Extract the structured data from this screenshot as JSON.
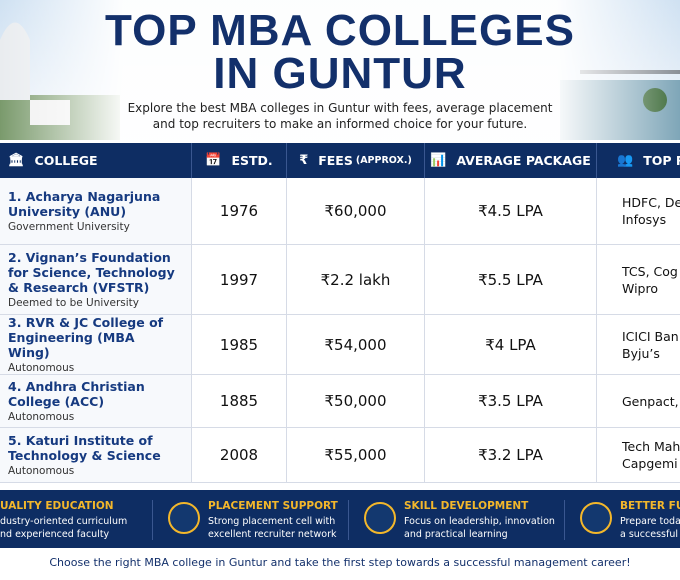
{
  "header": {
    "title_lines": [
      "TOP MBA COLLEGES",
      "IN GUNTUR"
    ],
    "subtitle_lines": [
      "Explore the best MBA colleges in Guntur with fees, average placement",
      "and top recruiters to make an informed choice for your future."
    ]
  },
  "table": {
    "columns": [
      {
        "label": "COLLEGE"
      },
      {
        "label": "ESTD."
      },
      {
        "label": "FEES",
        "note": "(APPROX.)"
      },
      {
        "label": "AVERAGE PACKAGE"
      },
      {
        "label": "TOP RE"
      }
    ],
    "rows": [
      {
        "name": "1. Acharya Nagarjuna University (ANU)",
        "type": "Government University",
        "estd": "1976",
        "fees": "₹60,000",
        "package": "₹4.5 LPA",
        "recruiters": [
          "HDFC, De",
          "Infosys"
        ]
      },
      {
        "name": "2. Vignan’s Foundation for Science, Technology & Research (VFSTR)",
        "type": "Deemed to be University",
        "estd": "1997",
        "fees": "₹2.2 lakh",
        "package": "₹5.5 LPA",
        "recruiters": [
          "TCS, Cog",
          "Wipro"
        ]
      },
      {
        "name": "3. RVR & JC College of Engineering (MBA Wing)",
        "type": "Autonomous",
        "estd": "1985",
        "fees": "₹54,000",
        "package": "₹4 LPA",
        "recruiters": [
          "ICICI Ban",
          "Byju’s"
        ]
      },
      {
        "name": "4. Andhra Christian College (ACC)",
        "type": "Autonomous",
        "estd": "1885",
        "fees": "₹50,000",
        "package": "₹3.5 LPA",
        "recruiters": [
          "Genpact,"
        ]
      },
      {
        "name": "5. Katuri Institute of Technology & Science",
        "type": "Autonomous",
        "estd": "2008",
        "fees": "₹55,000",
        "package": "₹3.2 LPA",
        "recruiters": [
          "Tech Mah",
          "Capgemi"
        ]
      }
    ]
  },
  "features": [
    {
      "title": "UALITY EDUCATION",
      "lines": [
        "dustry-oriented curriculum",
        "nd experienced faculty"
      ]
    },
    {
      "title": "PLACEMENT SUPPORT",
      "lines": [
        "Strong placement cell with",
        "excellent recruiter network"
      ]
    },
    {
      "title": "SKILL DEVELOPMENT",
      "lines": [
        "Focus on leadership, innovation",
        "and practical learning"
      ]
    },
    {
      "title": "BETTER FUTU",
      "lines": [
        "Prepare toda",
        "a successful f"
      ]
    }
  ],
  "footer": {
    "text": "Choose the right MBA college in Guntur and take the first step towards a successful management career!"
  }
}
